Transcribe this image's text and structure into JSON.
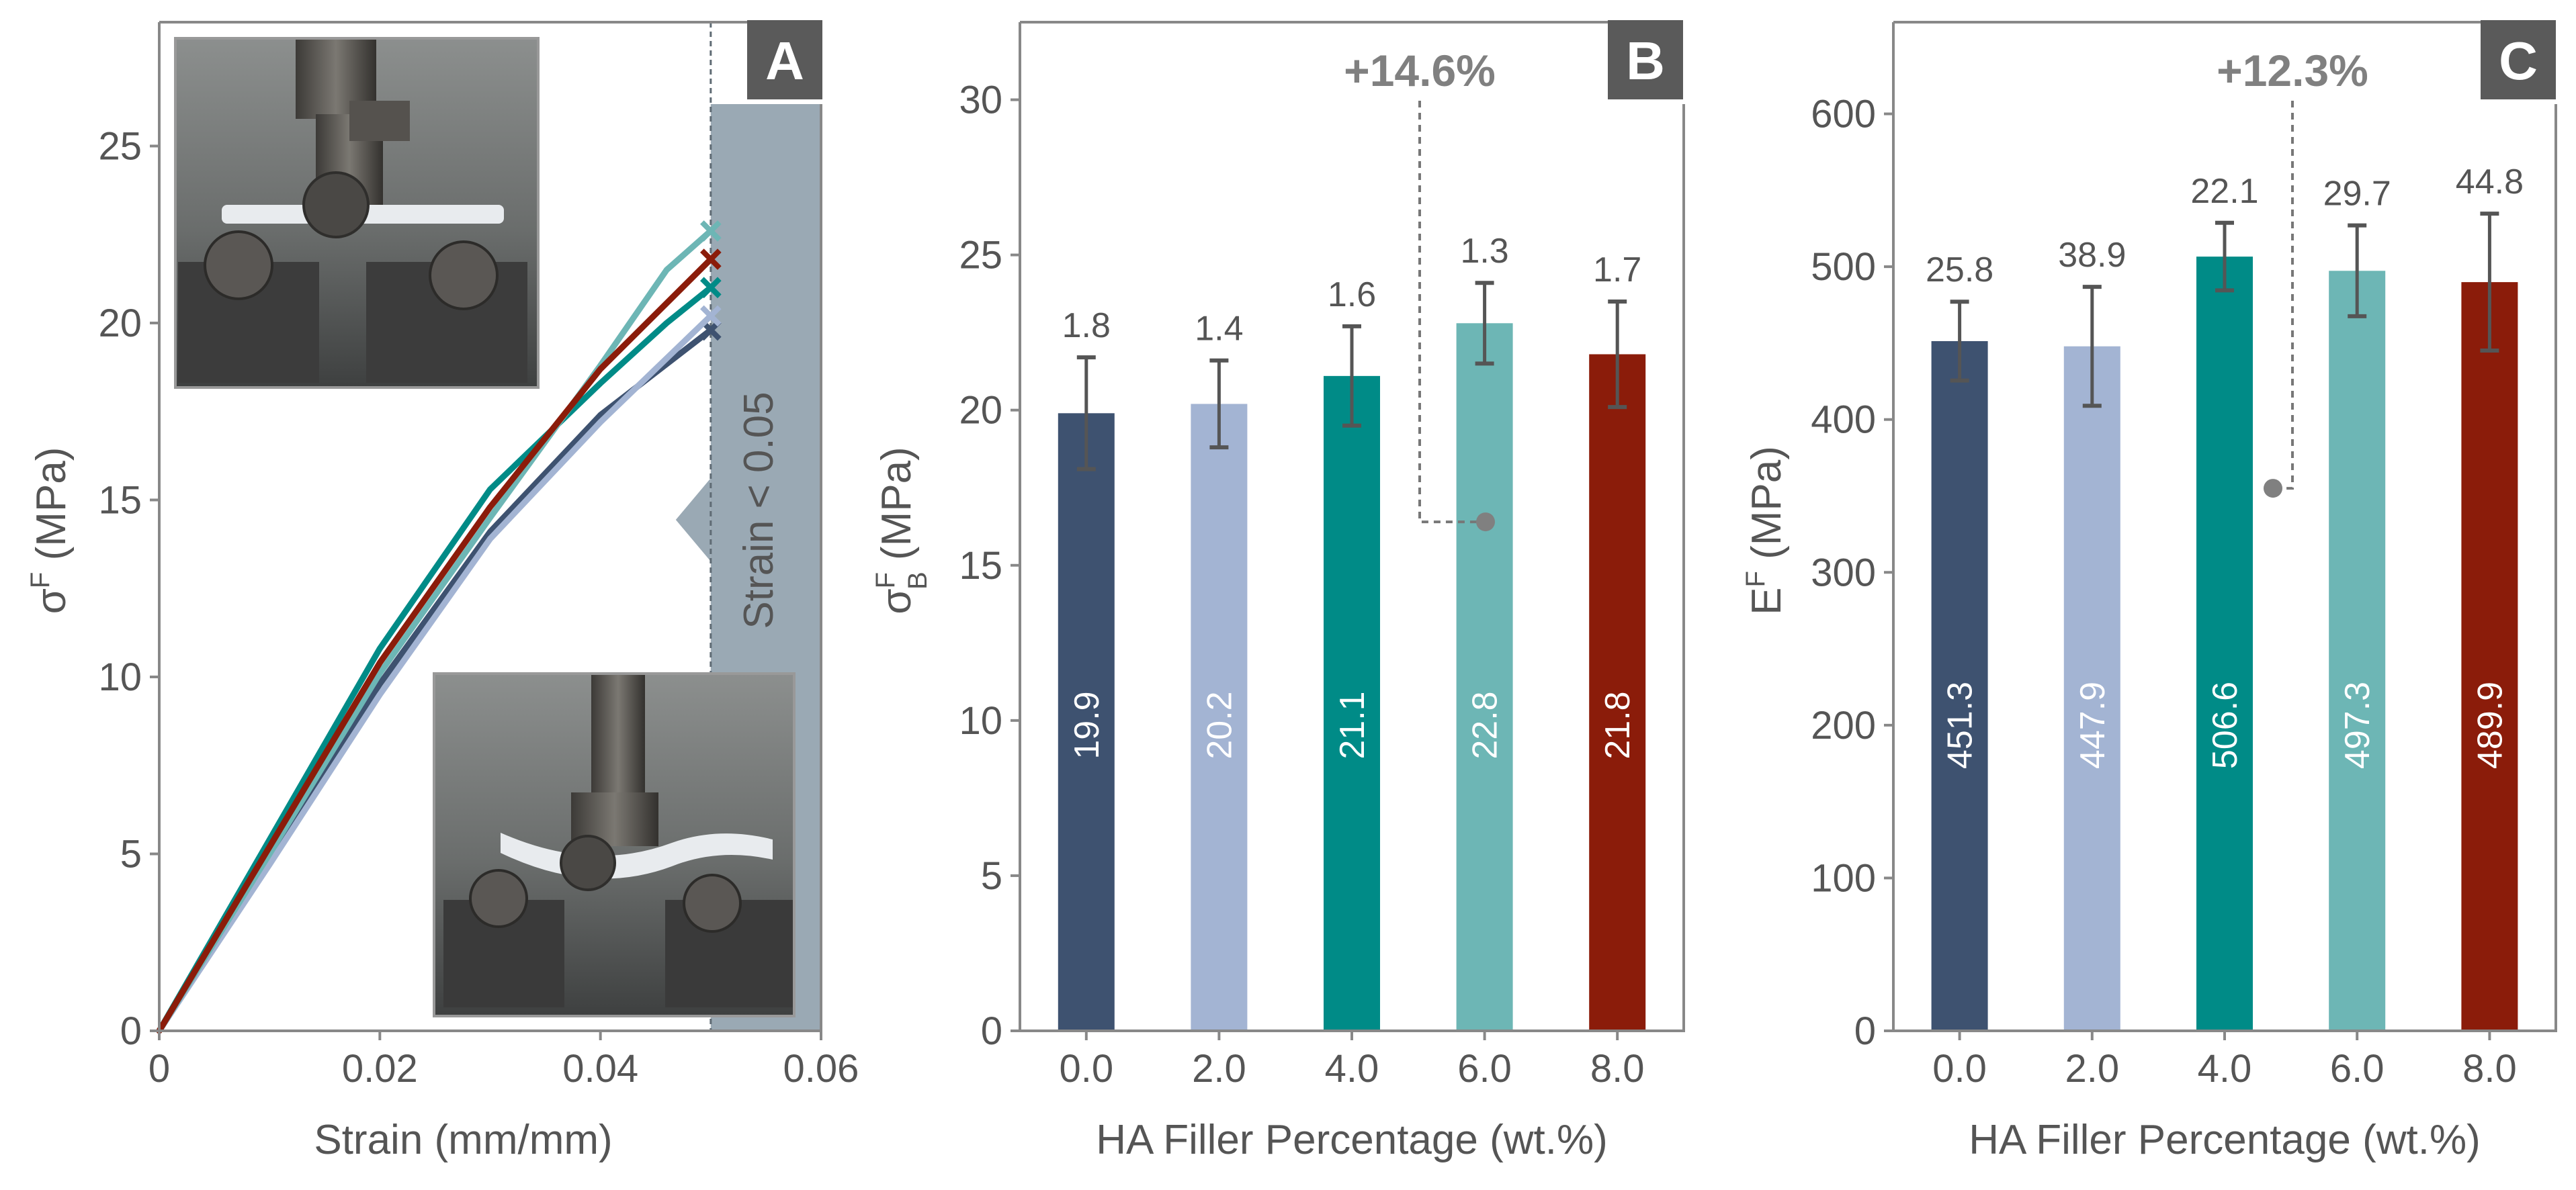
{
  "colors": {
    "c0": "#3e5270",
    "c2": "#a3b4d3",
    "c4": "#008b87",
    "c6": "#6db6b5",
    "c8": "#8b1c0a",
    "grey": "#9aa9b4",
    "axis": "#888888",
    "text": "#555555",
    "letter_bg": "#5a5a5a"
  },
  "chart_data": [
    {
      "panel": "A",
      "type": "line",
      "xlabel": "Strain (mm/mm)",
      "ylabel_main": "σ",
      "ylabel_sup": "F",
      "ylabel_units": " (MPa)",
      "xlim": [
        0,
        0.06
      ],
      "ylim": [
        0,
        28.5
      ],
      "xticks": [
        0,
        0.02,
        0.04,
        0.06
      ],
      "xtick_labels": [
        "0",
        "0.02",
        "0.04",
        "0.06"
      ],
      "yticks": [
        0,
        5,
        10,
        15,
        20,
        25
      ],
      "ytick_labels": [
        "0",
        "5",
        "10",
        "15",
        "20",
        "25"
      ],
      "shaded_region_label": "Strain < 0.05",
      "shaded_region_from": 0.05,
      "series": [
        {
          "name": "0.0 wt.%",
          "color_key": "c0",
          "x": [
            0,
            0.01,
            0.02,
            0.03,
            0.04,
            0.05
          ],
          "y": [
            0,
            4.9,
            9.8,
            14.1,
            17.4,
            19.8
          ]
        },
        {
          "name": "2.0 wt.%",
          "color_key": "c2",
          "x": [
            0,
            0.01,
            0.02,
            0.03,
            0.04,
            0.05
          ],
          "y": [
            0,
            4.7,
            9.5,
            13.9,
            17.2,
            20.2
          ]
        },
        {
          "name": "4.0 wt.%",
          "color_key": "c4",
          "x": [
            0,
            0.01,
            0.02,
            0.03,
            0.04,
            0.046,
            0.05
          ],
          "y": [
            0,
            5.4,
            10.8,
            15.3,
            18.3,
            20.0,
            21.0
          ]
        },
        {
          "name": "6.0 wt.%",
          "color_key": "c6",
          "x": [
            0,
            0.01,
            0.02,
            0.03,
            0.04,
            0.046,
            0.05
          ],
          "y": [
            0,
            5.0,
            10.1,
            14.5,
            18.8,
            21.5,
            22.6
          ]
        },
        {
          "name": "8.0 wt.%",
          "color_key": "c8",
          "x": [
            0,
            0.01,
            0.02,
            0.03,
            0.04,
            0.05
          ],
          "y": [
            0,
            5.2,
            10.4,
            14.8,
            18.7,
            21.8
          ]
        }
      ]
    },
    {
      "panel": "B",
      "type": "bar",
      "xlabel": "HA Filler Percentage (wt.%)",
      "ylabel_main": "σ",
      "ylabel_sup": "F",
      "ylabel_sub": "B",
      "ylabel_units": " (MPa)",
      "ylim": [
        0,
        32.5
      ],
      "yticks": [
        0,
        5,
        10,
        15,
        20,
        25,
        30
      ],
      "ytick_labels": [
        "0",
        "5",
        "10",
        "15",
        "20",
        "25",
        "30"
      ],
      "categories": [
        "0.0",
        "2.0",
        "4.0",
        "6.0",
        "8.0"
      ],
      "color_keys": [
        "c0",
        "c2",
        "c4",
        "c6",
        "c8"
      ],
      "values": [
        19.9,
        20.2,
        21.1,
        22.8,
        21.8
      ],
      "value_labels": [
        "19.9",
        "20.2",
        "21.1",
        "22.8",
        "21.8"
      ],
      "errors": [
        1.8,
        1.4,
        1.6,
        1.3,
        1.7
      ],
      "error_labels": [
        "1.8",
        "1.4",
        "1.6",
        "1.3",
        "1.7"
      ],
      "annotation": "+14.6%",
      "annotation_marker_value": 16.4
    },
    {
      "panel": "C",
      "type": "bar",
      "xlabel": "HA Filler Percentage (wt.%)",
      "ylabel_main": "E",
      "ylabel_sup": "F",
      "ylabel_units": " (MPa)",
      "ylim": [
        0,
        660
      ],
      "yticks": [
        0,
        100,
        200,
        300,
        400,
        500,
        600
      ],
      "ytick_labels": [
        "0",
        "100",
        "200",
        "300",
        "400",
        "500",
        "600"
      ],
      "categories": [
        "0.0",
        "2.0",
        "4.0",
        "6.0",
        "8.0"
      ],
      "color_keys": [
        "c0",
        "c2",
        "c4",
        "c6",
        "c8"
      ],
      "values": [
        451.3,
        447.9,
        506.6,
        497.3,
        489.9
      ],
      "value_labels": [
        "451.3",
        "447.9",
        "506.6",
        "497.3",
        "489.9"
      ],
      "errors": [
        25.8,
        38.9,
        22.1,
        29.7,
        44.8
      ],
      "error_labels": [
        "25.8",
        "38.9",
        "22.1",
        "29.7",
        "44.8"
      ],
      "annotation": "+12.3%",
      "annotation_marker_value": 355
    }
  ]
}
